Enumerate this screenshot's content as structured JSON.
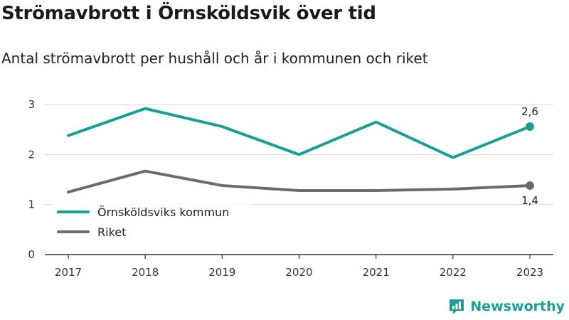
{
  "title": "Strömavbrott i Örnsköldsvik över tid",
  "subtitle": "Antal strömavbrott per hushåll och år i kommunen och riket",
  "brand": "Newsworthy",
  "colors": {
    "teal": "#17a097",
    "gray": "#6b6a72",
    "grid": "#d9d9d9",
    "axis": "#333333"
  },
  "chart_data": {
    "type": "line",
    "x": [
      "2017",
      "2018",
      "2019",
      "2020",
      "2021",
      "2022",
      "2023"
    ],
    "ylim": [
      0,
      3
    ],
    "yticks": [
      "0",
      "1",
      "2",
      "3"
    ],
    "legend_position": "bottom-left",
    "grid": true,
    "series": [
      {
        "name": "Örnsköldsviks kommun",
        "values": [
          2.38,
          2.92,
          2.56,
          2.0,
          2.65,
          1.94,
          2.56
        ],
        "end_label": "2,6",
        "color": "#17a097"
      },
      {
        "name": "Riket",
        "values": [
          1.25,
          1.67,
          1.38,
          1.28,
          1.28,
          1.31,
          1.38
        ],
        "end_label": "1,4",
        "color": "#6b6a72"
      }
    ]
  }
}
